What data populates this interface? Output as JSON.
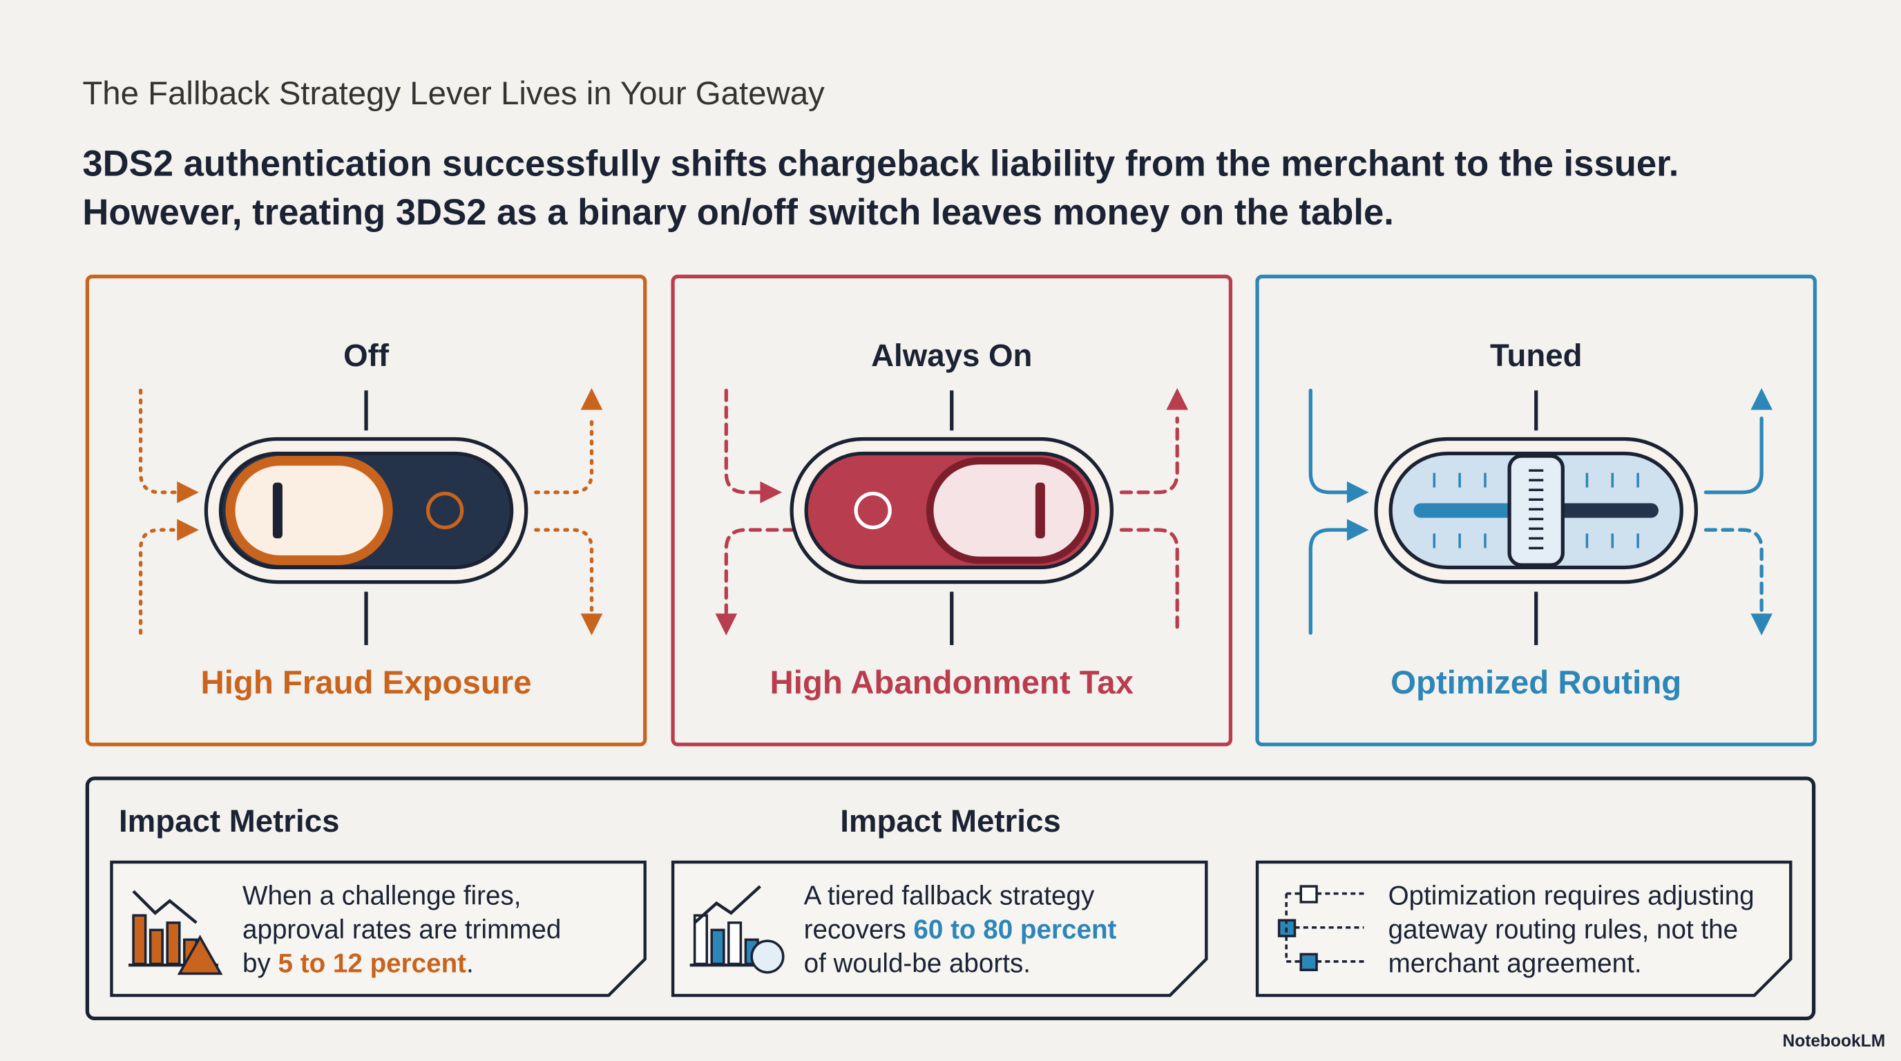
{
  "header": {
    "kicker": "The Fallback Strategy Lever Lives in Your Gateway",
    "headline": [
      "3DS2 authentication successfully shifts chargeback liability from the merchant to the issuer.",
      "However, treating 3DS2 as a binary on/off switch leaves money on the table."
    ]
  },
  "panels": [
    {
      "label": "Off",
      "caption": "High Fraud Exposure",
      "color": "#c8641e"
    },
    {
      "label": "Always On",
      "caption": "High Abandonment Tax",
      "color": "#b83d4e"
    },
    {
      "label": "Tuned",
      "caption": "Optimized Routing",
      "color": "#2c86b8"
    }
  ],
  "metrics": {
    "headings": [
      "Impact Metrics",
      "Impact Metrics"
    ],
    "cards": [
      {
        "lines": [
          [
            "When a challenge fires,"
          ],
          [
            "approval rates are trimmed"
          ],
          [
            "by ",
            {
              "text": "5 to 12 percent",
              "color": "#c8641e"
            },
            "."
          ]
        ]
      },
      {
        "lines": [
          [
            "A tiered fallback strategy"
          ],
          [
            "recovers ",
            {
              "text": "60 to 80 percent",
              "color": "#2c86b8"
            }
          ],
          [
            "of would-be aborts."
          ]
        ]
      },
      {
        "lines": [
          [
            "Optimization requires adjusting"
          ],
          [
            "gateway routing rules, not the"
          ],
          [
            "merchant agreement."
          ]
        ]
      }
    ]
  },
  "footer": {
    "brand": "NotebookLM"
  }
}
